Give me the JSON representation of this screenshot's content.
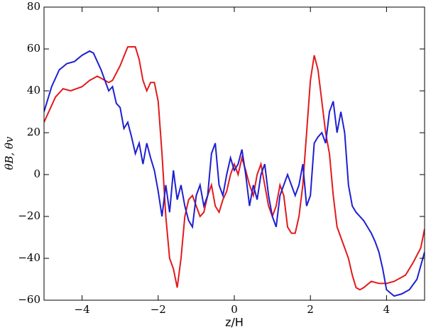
{
  "chart_data": {
    "type": "line",
    "xlabel": "z/H",
    "ylabel": "θB, θv",
    "xlim": [
      -5,
      5
    ],
    "ylim": [
      -60,
      80
    ],
    "xticks": [
      {
        "value": -4,
        "label": "−4"
      },
      {
        "value": -2,
        "label": "−2"
      },
      0,
      2,
      4
    ],
    "yticks": [
      {
        "value": -60,
        "label": "−60"
      },
      {
        "value": -40,
        "label": "−40"
      },
      {
        "value": -20,
        "label": "−20"
      },
      0,
      20,
      40,
      60,
      80
    ],
    "series": [
      {
        "color": "#e31a1c",
        "x": [
          -5,
          -4.7,
          -4.5,
          -4.3,
          -4,
          -3.8,
          -3.6,
          -3.5,
          -3.3,
          -3.2,
          -3,
          -2.8,
          -2.6,
          -2.5,
          -2.4,
          -2.3,
          -2.2,
          -2.1,
          -2,
          -1.9,
          -1.8,
          -1.7,
          -1.6,
          -1.5,
          -1.4,
          -1.3,
          -1.2,
          -1.1,
          -1,
          -0.9,
          -0.8,
          -0.7,
          -0.6,
          -0.5,
          -0.4,
          -0.3,
          -0.2,
          -0.1,
          0,
          0.1,
          0.2,
          0.3,
          0.4,
          0.5,
          0.6,
          0.7,
          0.8,
          0.9,
          1,
          1.1,
          1.2,
          1.3,
          1.4,
          1.5,
          1.6,
          1.7,
          1.8,
          1.9,
          2,
          2.1,
          2.2,
          2.3,
          2.4,
          2.5,
          2.6,
          2.7,
          2.8,
          2.9,
          3,
          3.1,
          3.2,
          3.3,
          3.4,
          3.6,
          3.8,
          4,
          4.2,
          4.5,
          4.7,
          4.9,
          5
        ],
        "values": [
          25,
          37,
          41,
          40,
          42,
          45,
          47,
          46,
          44,
          45,
          52,
          61,
          61,
          55,
          45,
          40,
          44,
          44,
          35,
          10,
          -20,
          -40,
          -45,
          -54,
          -40,
          -20,
          -12,
          -10,
          -15,
          -20,
          -18,
          -10,
          -5,
          -15,
          -18,
          -12,
          -8,
          0,
          5,
          0,
          8,
          2,
          -5,
          -10,
          0,
          5,
          -5,
          -15,
          -20,
          -15,
          -5,
          -10,
          -25,
          -28,
          -28,
          -20,
          -5,
          20,
          45,
          57,
          50,
          35,
          20,
          10,
          -10,
          -25,
          -30,
          -35,
          -40,
          -48,
          -54,
          -55,
          -54,
          -51,
          -52,
          -52,
          -51,
          -48,
          -42,
          -35,
          -26
        ]
      },
      {
        "color": "#1f1fd1",
        "x": [
          -5,
          -4.8,
          -4.6,
          -4.4,
          -4.2,
          -4,
          -3.8,
          -3.7,
          -3.6,
          -3.5,
          -3.4,
          -3.3,
          -3.2,
          -3.1,
          -3,
          -2.9,
          -2.8,
          -2.7,
          -2.6,
          -2.5,
          -2.4,
          -2.3,
          -2.2,
          -2.1,
          -2,
          -1.9,
          -1.8,
          -1.7,
          -1.6,
          -1.5,
          -1.4,
          -1.3,
          -1.2,
          -1.1,
          -1,
          -0.9,
          -0.8,
          -0.7,
          -0.6,
          -0.5,
          -0.4,
          -0.3,
          -0.2,
          -0.1,
          0,
          0.1,
          0.2,
          0.3,
          0.4,
          0.5,
          0.6,
          0.7,
          0.8,
          0.9,
          1,
          1.1,
          1.2,
          1.3,
          1.4,
          1.5,
          1.6,
          1.7,
          1.8,
          1.9,
          2,
          2.1,
          2.2,
          2.3,
          2.4,
          2.5,
          2.6,
          2.7,
          2.8,
          2.9,
          3,
          3.1,
          3.2,
          3.3,
          3.4,
          3.5,
          3.6,
          3.7,
          3.8,
          3.9,
          4,
          4.2,
          4.4,
          4.6,
          4.8,
          5
        ],
        "values": [
          30,
          42,
          50,
          53,
          54,
          57,
          59,
          58,
          54,
          50,
          45,
          40,
          42,
          34,
          32,
          22,
          25,
          18,
          10,
          15,
          5,
          15,
          8,
          2,
          -8,
          -20,
          -5,
          -18,
          2,
          -12,
          -5,
          -15,
          -22,
          -25,
          -10,
          -5,
          -15,
          -10,
          10,
          15,
          -5,
          -10,
          0,
          8,
          2,
          5,
          12,
          0,
          -15,
          -5,
          -12,
          0,
          5,
          -10,
          -20,
          -25,
          -10,
          -5,
          0,
          -5,
          -10,
          -5,
          5,
          -15,
          -10,
          15,
          18,
          20,
          15,
          30,
          35,
          20,
          30,
          20,
          -5,
          -15,
          -18,
          -20,
          -22,
          -25,
          -28,
          -32,
          -37,
          -45,
          -55,
          -58,
          -57,
          -55,
          -50,
          -37
        ]
      }
    ]
  }
}
